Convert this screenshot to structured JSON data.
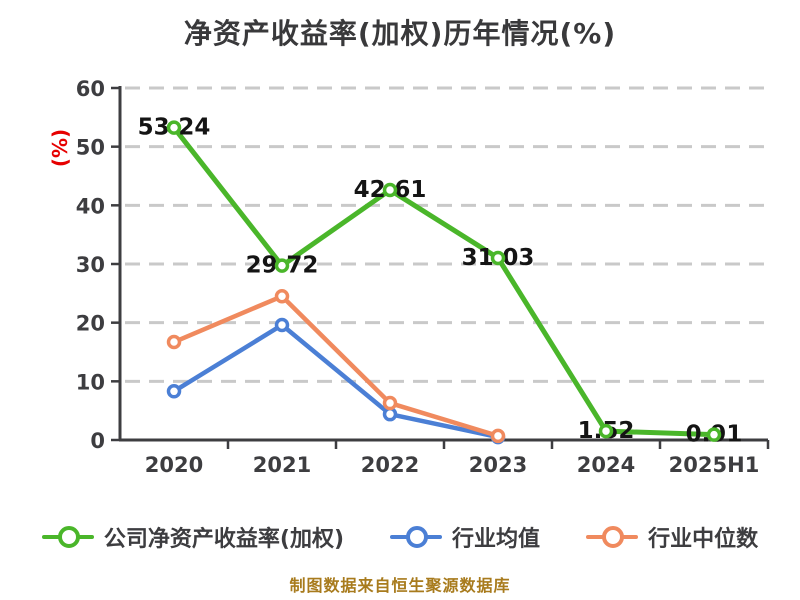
{
  "title": "净资产收益率(加权)历年情况(%)",
  "y_axis_label": "(%)",
  "footer": "制图数据来自恒生聚源数据库",
  "colors": {
    "company": "#4ab62a",
    "industry_avg": "#4b7fd5",
    "industry_median": "#f08a5e",
    "grid": "#c9c9c9",
    "axis": "#3d3d40",
    "data_label": "#141414",
    "y_unit_label": "#e60000",
    "footer_text": "#a87b1d",
    "marker_fill": "#ffffff"
  },
  "chart_data": {
    "type": "line",
    "title": "净资产收益率(加权)历年情况(%)",
    "ylabel": "(%)",
    "categories": [
      "2020",
      "2021",
      "2022",
      "2023",
      "2024",
      "2025H1"
    ],
    "series": [
      {
        "name": "公司净资产收益率(加权)",
        "color_key": "company",
        "values": [
          53.24,
          29.72,
          42.61,
          31.03,
          1.52,
          0.91
        ],
        "point_labels": [
          "53.24",
          "29.72",
          "42.61",
          "31.03",
          "1.52",
          "0.91"
        ]
      },
      {
        "name": "行业均值",
        "color_key": "industry_avg",
        "values": [
          8.3,
          19.6,
          4.4,
          0.5,
          null,
          null
        ],
        "point_labels": null
      },
      {
        "name": "行业中位数",
        "color_key": "industry_median",
        "values": [
          16.7,
          24.5,
          6.3,
          0.7,
          null,
          null
        ],
        "point_labels": null
      }
    ],
    "ylim": [
      0,
      60
    ],
    "yticks": [
      0,
      10,
      20,
      30,
      40,
      50,
      60
    ],
    "grid": "horizontal-dashed",
    "legend_position": "bottom",
    "source_note": "制图数据来自恒生聚源数据库"
  }
}
